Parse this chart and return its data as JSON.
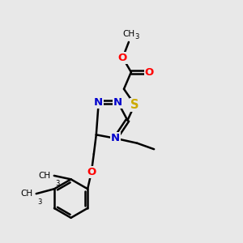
{
  "bg_color": "#e8e8e8",
  "atom_colors": {
    "C": "#000000",
    "N": "#0000cc",
    "O": "#ff0000",
    "S": "#ccaa00"
  },
  "bond_color": "#000000",
  "bond_width": 1.8,
  "fig_size": [
    3.0,
    3.0
  ],
  "dpi": 100,
  "xlim": [
    0,
    10
  ],
  "ylim": [
    0,
    10
  ]
}
